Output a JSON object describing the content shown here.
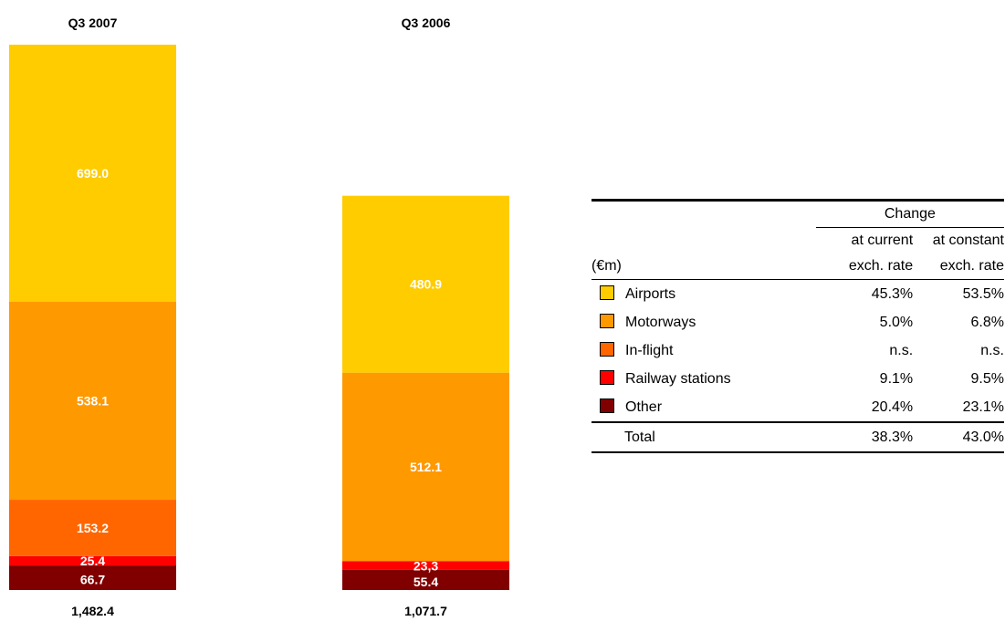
{
  "chart_data": {
    "type": "bar",
    "stacked": true,
    "categories": [
      "Q3 2007",
      "Q3 2006"
    ],
    "series": [
      {
        "name": "Other",
        "values": [
          66.7,
          55.4
        ],
        "value_labels": [
          "66.7",
          "55.4"
        ],
        "color": "#800000"
      },
      {
        "name": "Railway stations",
        "values": [
          25.4,
          23.3
        ],
        "value_labels": [
          "25.4",
          "23,3"
        ],
        "color": "#ff0000"
      },
      {
        "name": "In-flight",
        "values": [
          153.2,
          0
        ],
        "value_labels": [
          "153.2",
          ""
        ],
        "color": "#ff6600"
      },
      {
        "name": "Motorways",
        "values": [
          538.1,
          512.1
        ],
        "value_labels": [
          "538.1",
          "512.1"
        ],
        "color": "#ff9900"
      },
      {
        "name": "Airports",
        "values": [
          699.0,
          480.9
        ],
        "value_labels": [
          "699.0",
          "480.9"
        ],
        "color": "#ffcc00"
      }
    ],
    "totals": [
      "1,482.4",
      "1,071.7"
    ],
    "ylim": [
      0,
      1482.4
    ]
  },
  "table": {
    "change_header": "Change",
    "col1_header_top": "at current",
    "col1_header_bottom": "exch. rate",
    "col2_header_top": "at constant",
    "col2_header_bottom": "exch. rate",
    "unit_label": "(€m)",
    "rows": [
      {
        "label": "Airports",
        "current": "45.3%",
        "constant": "53.5%",
        "color": "#ffcc00"
      },
      {
        "label": "Motorways",
        "current": "5.0%",
        "constant": "6.8%",
        "color": "#ff9900"
      },
      {
        "label": "In-flight",
        "current": "n.s.",
        "constant": "n.s.",
        "color": "#ff6600"
      },
      {
        "label": "Railway stations",
        "current": "9.1%",
        "constant": "9.5%",
        "color": "#ff0000"
      },
      {
        "label": "Other",
        "current": "20.4%",
        "constant": "23.1%",
        "color": "#800000"
      }
    ],
    "total": {
      "label": "Total",
      "current": "38.3%",
      "constant": "43.0%"
    }
  }
}
